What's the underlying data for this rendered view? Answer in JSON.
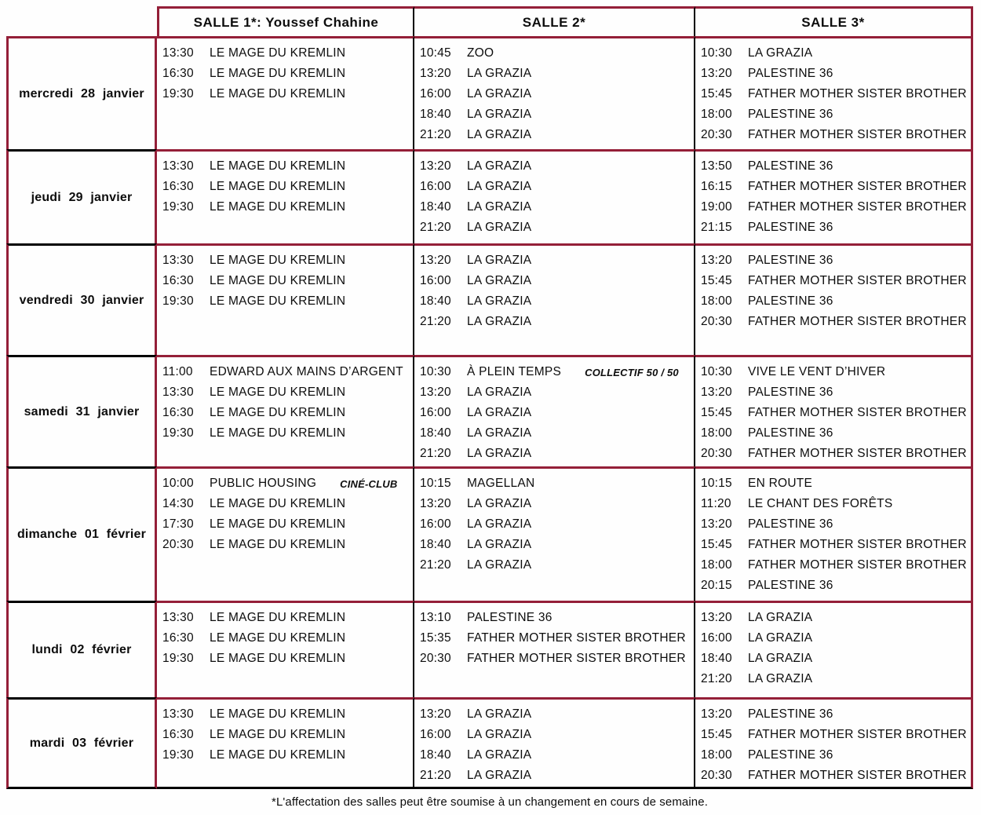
{
  "colors": {
    "accent_border_red": "#941f38",
    "border_black": "#000000"
  },
  "header": {
    "salles": [
      "SALLE 1*: Youssef Chahine",
      "SALLE 2*",
      "SALLE 3*"
    ]
  },
  "rows": [
    {
      "day": "mercredi 28 janvier",
      "salle1": [
        {
          "time": "13:30",
          "title": "LE MAGE DU KREMLIN"
        },
        {
          "time": "16:30",
          "title": "LE MAGE DU KREMLIN"
        },
        {
          "time": "19:30",
          "title": "LE MAGE DU KREMLIN"
        }
      ],
      "salle2": [
        {
          "time": "10:45",
          "title": "ZOO"
        },
        {
          "time": "13:20",
          "title": "LA GRAZIA"
        },
        {
          "time": "16:00",
          "title": "LA GRAZIA"
        },
        {
          "time": "18:40",
          "title": "LA GRAZIA"
        },
        {
          "time": "21:20",
          "title": "LA GRAZIA"
        }
      ],
      "salle3": [
        {
          "time": "10:30",
          "title": "LA GRAZIA"
        },
        {
          "time": "13:20",
          "title": "PALESTINE 36"
        },
        {
          "time": "15:45",
          "title": "FATHER MOTHER SISTER BROTHER"
        },
        {
          "time": "18:00",
          "title": "PALESTINE 36"
        },
        {
          "time": "20:30",
          "title": "FATHER MOTHER SISTER BROTHER"
        }
      ]
    },
    {
      "day": "jeudi 29 janvier",
      "salle1": [
        {
          "time": "13:30",
          "title": "LE MAGE DU KREMLIN"
        },
        {
          "time": "16:30",
          "title": "LE MAGE DU KREMLIN"
        },
        {
          "time": "19:30",
          "title": "LE MAGE DU KREMLIN"
        }
      ],
      "salle2": [
        {
          "time": "13:20",
          "title": "LA GRAZIA"
        },
        {
          "time": "16:00",
          "title": "LA GRAZIA"
        },
        {
          "time": "18:40",
          "title": "LA GRAZIA"
        },
        {
          "time": "21:20",
          "title": "LA GRAZIA"
        }
      ],
      "salle3": [
        {
          "time": "13:50",
          "title": "PALESTINE 36"
        },
        {
          "time": "16:15",
          "title": "FATHER MOTHER SISTER BROTHER"
        },
        {
          "time": "19:00",
          "title": "FATHER MOTHER SISTER BROTHER"
        },
        {
          "time": "21:15",
          "title": "PALESTINE 36"
        }
      ]
    },
    {
      "day": "vendredi 30 janvier",
      "salle1": [
        {
          "time": "13:30",
          "title": "LE MAGE DU KREMLIN"
        },
        {
          "time": "16:30",
          "title": "LE MAGE DU KREMLIN"
        },
        {
          "time": "19:30",
          "title": "LE MAGE DU KREMLIN"
        }
      ],
      "salle2": [
        {
          "time": "13:20",
          "title": "LA GRAZIA"
        },
        {
          "time": "16:00",
          "title": "LA GRAZIA"
        },
        {
          "time": "18:40",
          "title": "LA GRAZIA"
        },
        {
          "time": "21:20",
          "title": "LA GRAZIA"
        }
      ],
      "salle3": [
        {
          "time": "13:20",
          "title": "PALESTINE 36"
        },
        {
          "time": "15:45",
          "title": "FATHER MOTHER SISTER BROTHER"
        },
        {
          "time": "18:00",
          "title": "PALESTINE 36"
        },
        {
          "time": "20:30",
          "title": "FATHER MOTHER SISTER BROTHER"
        }
      ]
    },
    {
      "day": "samedi 31 janvier",
      "salle1": [
        {
          "time": "11:00",
          "title": "EDWARD AUX MAINS D’ARGENT"
        },
        {
          "time": "13:30",
          "title": "LE MAGE DU KREMLIN"
        },
        {
          "time": "16:30",
          "title": "LE MAGE DU KREMLIN"
        },
        {
          "time": "19:30",
          "title": "LE MAGE DU KREMLIN"
        }
      ],
      "salle2": [
        {
          "time": "10:30",
          "title": "À PLEIN TEMPS",
          "note": "COLLECTIF 50 / 50"
        },
        {
          "time": "13:20",
          "title": "LA GRAZIA"
        },
        {
          "time": "16:00",
          "title": "LA GRAZIA"
        },
        {
          "time": "18:40",
          "title": "LA GRAZIA"
        },
        {
          "time": "21:20",
          "title": "LA GRAZIA"
        }
      ],
      "salle3": [
        {
          "time": "10:30",
          "title": "VIVE LE VENT D’HIVER"
        },
        {
          "time": "13:20",
          "title": "PALESTINE 36"
        },
        {
          "time": "15:45",
          "title": "FATHER MOTHER SISTER BROTHER"
        },
        {
          "time": "18:00",
          "title": "PALESTINE 36"
        },
        {
          "time": "20:30",
          "title": "FATHER MOTHER SISTER BROTHER"
        }
      ]
    },
    {
      "day": "dimanche 01 février",
      "salle1": [
        {
          "time": "10:00",
          "title": "PUBLIC HOUSING",
          "note": "CINÉ-CLUB"
        },
        {
          "time": "14:30",
          "title": "LE MAGE DU KREMLIN"
        },
        {
          "time": "17:30",
          "title": "LE MAGE DU KREMLIN"
        },
        {
          "time": "20:30",
          "title": "LE MAGE DU KREMLIN"
        }
      ],
      "salle2": [
        {
          "time": "10:15",
          "title": "MAGELLAN"
        },
        {
          "time": "13:20",
          "title": "LA GRAZIA"
        },
        {
          "time": "16:00",
          "title": "LA GRAZIA"
        },
        {
          "time": "18:40",
          "title": "LA GRAZIA"
        },
        {
          "time": "21:20",
          "title": "LA GRAZIA"
        }
      ],
      "salle3": [
        {
          "time": "10:15",
          "title": "EN ROUTE"
        },
        {
          "time": "11:20",
          "title": "LE CHANT DES FORÊTS"
        },
        {
          "time": "13:20",
          "title": "PALESTINE 36"
        },
        {
          "time": "15:45",
          "title": "FATHER MOTHER SISTER BROTHER"
        },
        {
          "time": "18:00",
          "title": "FATHER MOTHER SISTER BROTHER"
        },
        {
          "time": "20:15",
          "title": "PALESTINE 36"
        }
      ]
    },
    {
      "day": "lundi 02 février",
      "salle1": [
        {
          "time": "13:30",
          "title": "LE MAGE DU KREMLIN"
        },
        {
          "time": "16:30",
          "title": "LE MAGE DU KREMLIN"
        },
        {
          "time": "19:30",
          "title": "LE MAGE DU KREMLIN"
        }
      ],
      "salle2": [
        {
          "time": "13:10",
          "title": "PALESTINE 36"
        },
        {
          "time": "15:35",
          "title": "FATHER MOTHER SISTER BROTHER"
        },
        {
          "time": "20:30",
          "title": "FATHER MOTHER SISTER BROTHER"
        }
      ],
      "salle3": [
        {
          "time": "13:20",
          "title": "LA GRAZIA"
        },
        {
          "time": "16:00",
          "title": "LA GRAZIA"
        },
        {
          "time": "18:40",
          "title": "LA GRAZIA"
        },
        {
          "time": "21:20",
          "title": "LA GRAZIA"
        }
      ]
    },
    {
      "day": "mardi 03 février",
      "salle1": [
        {
          "time": "13:30",
          "title": "LE MAGE DU KREMLIN"
        },
        {
          "time": "16:30",
          "title": "LE MAGE DU KREMLIN"
        },
        {
          "time": "19:30",
          "title": "LE MAGE DU KREMLIN"
        }
      ],
      "salle2": [
        {
          "time": "13:20",
          "title": "LA GRAZIA"
        },
        {
          "time": "16:00",
          "title": "LA GRAZIA"
        },
        {
          "time": "18:40",
          "title": "LA GRAZIA"
        },
        {
          "time": "21:20",
          "title": "LA GRAZIA"
        }
      ],
      "salle3": [
        {
          "time": "13:20",
          "title": "PALESTINE 36"
        },
        {
          "time": "15:45",
          "title": "FATHER MOTHER SISTER BROTHER"
        },
        {
          "time": "18:00",
          "title": "PALESTINE 36"
        },
        {
          "time": "20:30",
          "title": "FATHER MOTHER SISTER BROTHER"
        }
      ]
    }
  ],
  "footer": {
    "note": "*L'affectation des salles peut être soumise à un changement en cours de semaine."
  }
}
